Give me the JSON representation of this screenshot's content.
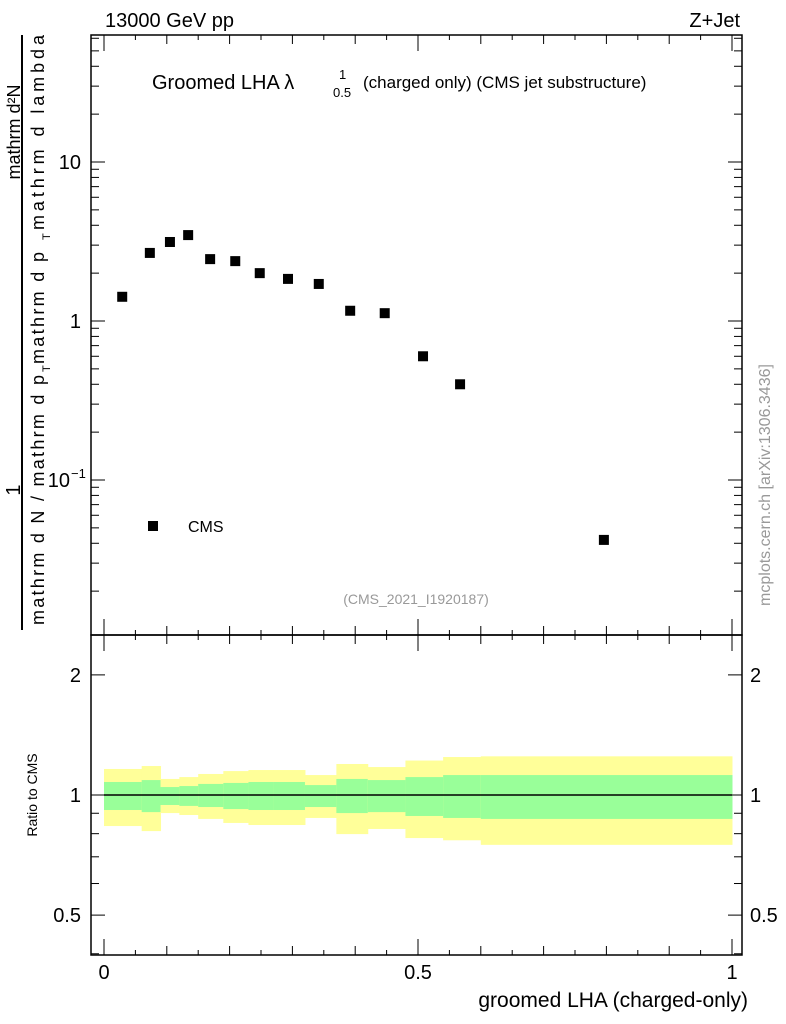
{
  "header": {
    "left": "13000 GeV pp",
    "right": "Z+Jet"
  },
  "side_label": "mcplots.cern.ch [arXiv:1306.3436]",
  "watermark": "(CMS_2021_I1920187)",
  "colors": {
    "stat_band": "#99ff99",
    "total_band": "#ffff99",
    "data": "#000000"
  },
  "chart_data": [
    {
      "type": "scatter",
      "title": "Groomed LHA λ_{0.5}^{1} (charged only) (CMS jet substructure)",
      "title_parts": {
        "main": "Groomed LHA λ",
        "sup": "1",
        "sub": "0.5",
        "rest": "(charged only) (CMS jet substructure)"
      },
      "ylabel_parts": {
        "num1": "1",
        "den1": "mathrm d N / mathrm d p",
        "num2": "mathrm d²N",
        "den2": "mathrm d p",
        "den2b": "mathrm d lambda",
        "sub": "T"
      },
      "yscale": "log",
      "ylim": [
        0.0106,
        63
      ],
      "xlim": [
        0,
        1
      ],
      "yticks": [
        {
          "v": 10,
          "label": "10"
        },
        {
          "v": 1,
          "label": "1"
        },
        {
          "v": 0.1,
          "label": "10",
          "exp": "−1"
        }
      ],
      "legend": {
        "position": "bottom-left",
        "entries": [
          "CMS"
        ]
      },
      "series": [
        {
          "name": "CMS",
          "x": [
            0.029,
            0.073,
            0.105,
            0.134,
            0.169,
            0.209,
            0.248,
            0.293,
            0.342,
            0.392,
            0.447,
            0.508,
            0.567,
            0.796
          ],
          "y": [
            1.42,
            2.68,
            3.14,
            3.47,
            2.45,
            2.38,
            2.0,
            1.84,
            1.71,
            1.16,
            1.12,
            0.6,
            0.4,
            0.042
          ]
        }
      ]
    },
    {
      "type": "area",
      "ylabel": "Ratio to CMS",
      "xlabel": "groomed LHA (charged-only)",
      "yscale": "log",
      "ylim": [
        0.397,
        2.52
      ],
      "xlim": [
        0,
        1
      ],
      "yticks": [
        {
          "v": 2,
          "label": "2"
        },
        {
          "v": 1,
          "label": "1"
        },
        {
          "v": 0.5,
          "label": "0.5"
        }
      ],
      "xticks": [
        {
          "v": 0,
          "label": "0"
        },
        {
          "v": 0.5,
          "label": "0.5"
        },
        {
          "v": 1,
          "label": "1"
        }
      ],
      "bin_edges": [
        0,
        0.06,
        0.09,
        0.12,
        0.15,
        0.19,
        0.23,
        0.27,
        0.32,
        0.37,
        0.42,
        0.48,
        0.54,
        0.6,
        1.0
      ],
      "stat_band": {
        "low": [
          0.917,
          0.906,
          0.944,
          0.939,
          0.933,
          0.922,
          0.917,
          0.917,
          0.933,
          0.901,
          0.906,
          0.886,
          0.876,
          0.871
        ],
        "high": [
          1.078,
          1.09,
          1.047,
          1.053,
          1.066,
          1.072,
          1.078,
          1.078,
          1.059,
          1.097,
          1.09,
          1.109,
          1.122,
          1.122
        ]
      },
      "total_band": {
        "low": [
          0.836,
          0.812,
          0.901,
          0.891,
          0.871,
          0.851,
          0.841,
          0.841,
          0.876,
          0.798,
          0.822,
          0.78,
          0.77,
          0.75
        ],
        "high": [
          1.162,
          1.182,
          1.097,
          1.109,
          1.129,
          1.148,
          1.155,
          1.155,
          1.122,
          1.196,
          1.175,
          1.22,
          1.245,
          1.25
        ]
      },
      "reference_line": 1
    }
  ]
}
